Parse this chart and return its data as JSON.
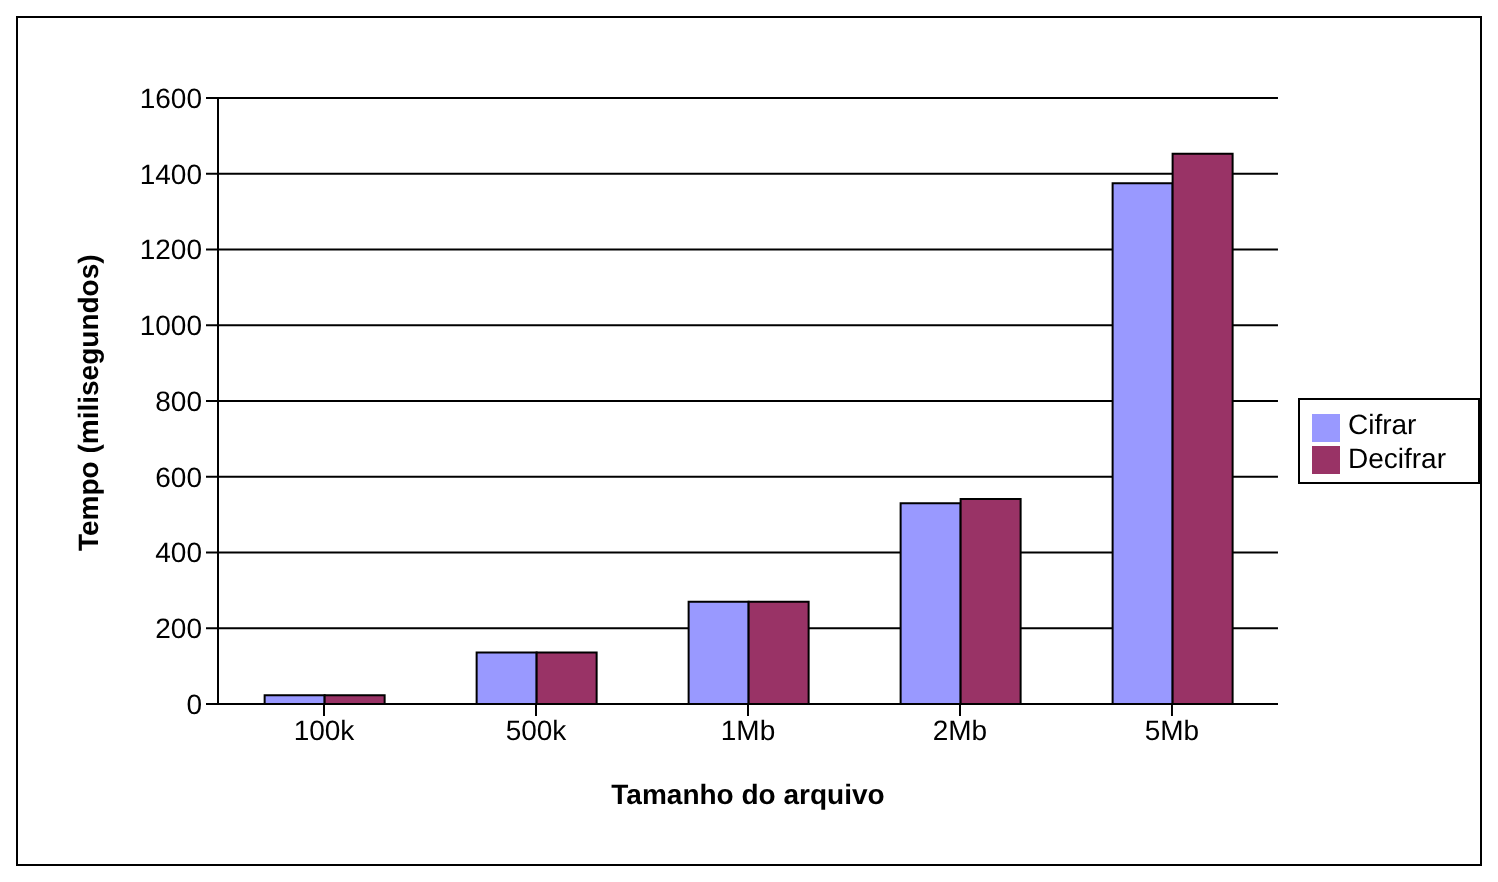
{
  "chart_data": {
    "type": "bar",
    "xlabel": "Tamanho do arquivo",
    "ylabel": "Tempo (milisegundos)",
    "categories": [
      "100k",
      "500k",
      "1Mb",
      "2Mb",
      "5Mb"
    ],
    "series": [
      {
        "name": "Cifrar",
        "color": "#9999ff",
        "values": [
          23,
          136,
          270,
          530,
          1375
        ]
      },
      {
        "name": "Decifrar",
        "color": "#993366",
        "values": [
          23,
          136,
          270,
          541,
          1453
        ]
      }
    ],
    "ylim": [
      0,
      1600
    ],
    "yticks": [
      0,
      200,
      400,
      600,
      800,
      1000,
      1200,
      1400,
      1600
    ],
    "grid": "y",
    "legend": "right"
  }
}
